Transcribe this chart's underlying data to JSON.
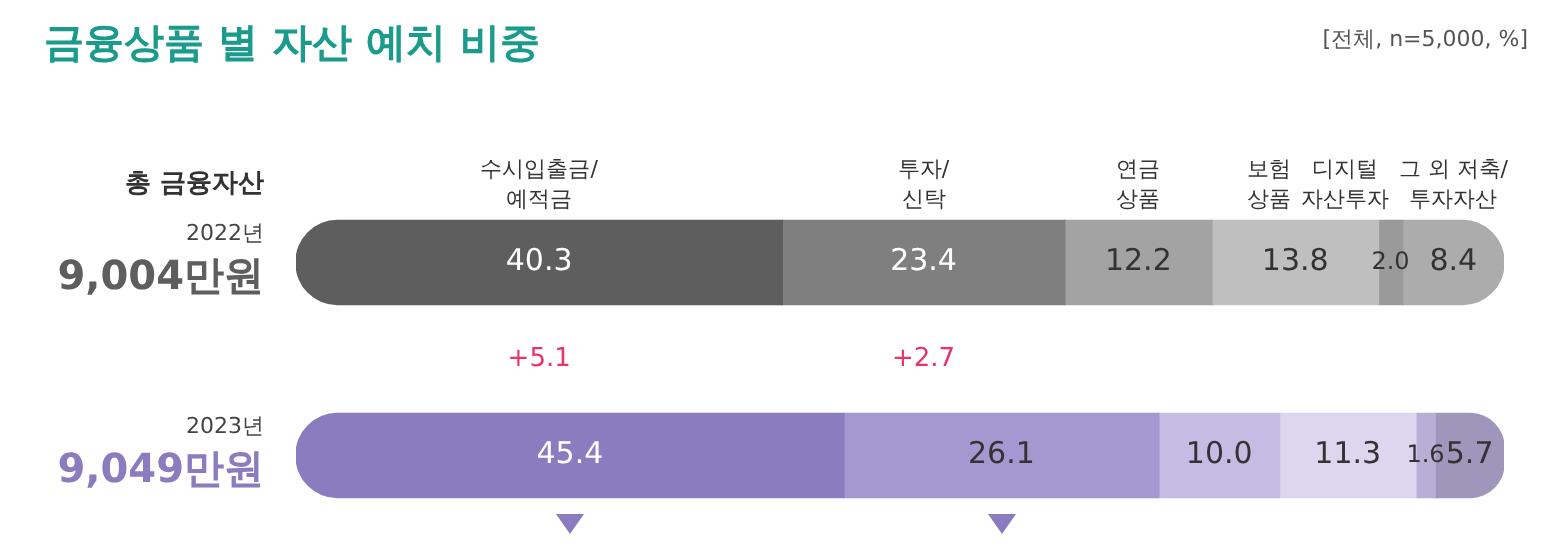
{
  "chart_data": {
    "type": "bar",
    "orientation": "horizontal",
    "stacked": true,
    "title": "금융상품 별 자산 예치 비중",
    "subtitle": "[전체, n=5,000, %]",
    "ylabel": "총 금융자산",
    "categories": [
      "2022년\n9,004만원",
      "2023년\n9,049만원"
    ],
    "series": [
      {
        "name": "수시입출금/\n예적금",
        "colors": [
          "#5e5e5e",
          "#8a7cbf"
        ],
        "values": [
          40.3,
          45.4
        ],
        "value_labels": [
          "40.3",
          "45.4"
        ]
      },
      {
        "name": "투자/\n신탁",
        "colors": [
          "#7f7f7f",
          "#a597cf"
        ],
        "values": [
          23.4,
          26.1
        ],
        "value_labels": [
          "23.4",
          "26.1"
        ]
      },
      {
        "name": "연금\n상품",
        "colors": [
          "#a3a3a3",
          "#c4bce2"
        ],
        "values": [
          12.2,
          10.0
        ],
        "value_labels": [
          "12.2",
          "10.0"
        ]
      },
      {
        "name": "보험\n상품",
        "colors": [
          "#bfbfbf",
          "#dcd6ef"
        ],
        "values": [
          13.8,
          11.3
        ],
        "value_labels": [
          "13.8",
          "11.3"
        ]
      },
      {
        "name": "디지털\n자산투자",
        "colors": [
          "#9a9a9a",
          "#b7afd6"
        ],
        "values": [
          2.0,
          1.6
        ],
        "value_labels": [
          "2.0",
          "1.6"
        ]
      },
      {
        "name": "그 외 저축/\n투자자산",
        "colors": [
          "#acacac",
          "#9e96bb"
        ],
        "values": [
          8.4,
          5.7
        ],
        "value_labels": [
          "8.4",
          "5.7"
        ]
      }
    ],
    "annotations": [
      "+5.1",
      "+2.7"
    ]
  }
}
